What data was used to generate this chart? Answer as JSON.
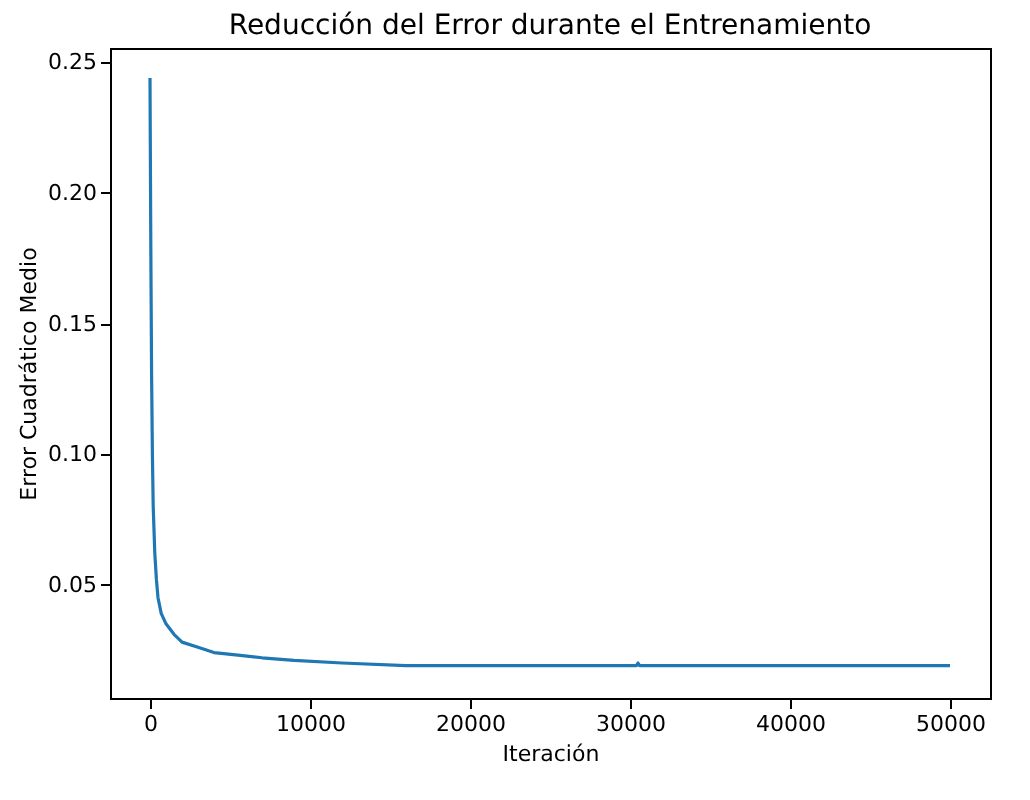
{
  "chart_data": {
    "type": "line",
    "title": "Reducción del Error durante el Entrenamiento",
    "xlabel": "Iteración",
    "ylabel": "Error Cuadrático Medio",
    "series": [
      {
        "color": "#1f77b4",
        "x": [
          0,
          50,
          100,
          150,
          200,
          300,
          400,
          500,
          700,
          1000,
          1500,
          2000,
          3000,
          4000,
          5500,
          7000,
          9000,
          12000,
          16000,
          20000,
          25000,
          30400,
          30500,
          30600,
          35000,
          40000,
          45000,
          50000
        ],
        "values": [
          0.244,
          0.18,
          0.13,
          0.1,
          0.08,
          0.062,
          0.052,
          0.045,
          0.039,
          0.035,
          0.031,
          0.028,
          0.026,
          0.024,
          0.023,
          0.022,
          0.021,
          0.02,
          0.019,
          0.019,
          0.019,
          0.019,
          0.02,
          0.019,
          0.019,
          0.019,
          0.019,
          0.019
        ]
      }
    ],
    "xlim": [
      -2500,
      52500
    ],
    "ylim": [
      0.0066,
      0.2555
    ],
    "xticks": [
      0,
      10000,
      20000,
      30000,
      40000,
      50000
    ],
    "yticks": [
      {
        "value": 0.05,
        "label": "0.05"
      },
      {
        "value": 0.1,
        "label": "0.10"
      },
      {
        "value": 0.15,
        "label": "0.15"
      },
      {
        "value": 0.2,
        "label": "0.20"
      },
      {
        "value": 0.25,
        "label": "0.25"
      }
    ],
    "grid": false,
    "line_style": "solid",
    "marker": "none"
  }
}
